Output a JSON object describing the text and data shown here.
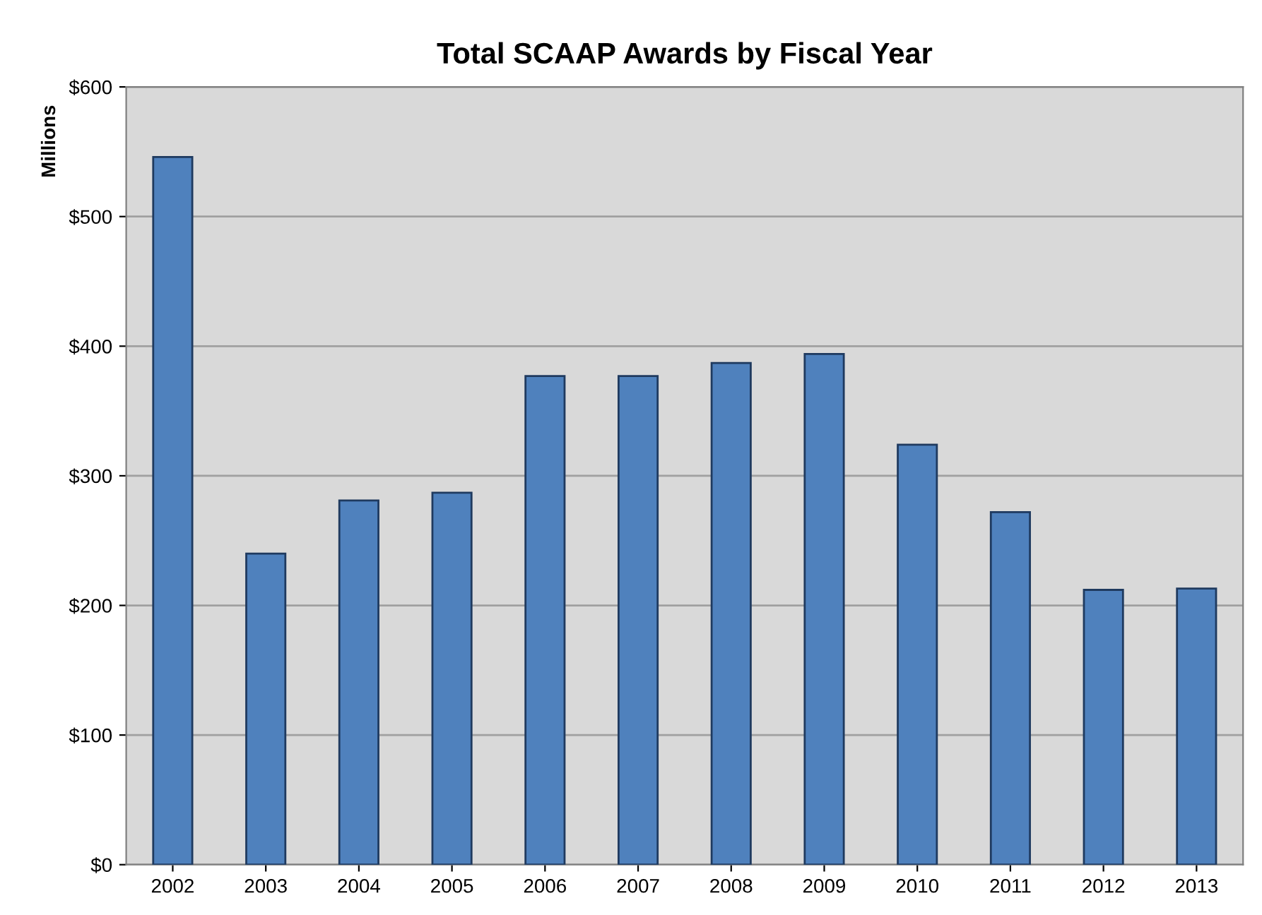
{
  "chart_data": {
    "type": "bar",
    "title": "Total SCAAP Awards by Fiscal Year",
    "ylabel": "Millions",
    "categories": [
      "2002",
      "2003",
      "2004",
      "2005",
      "2006",
      "2007",
      "2008",
      "2009",
      "2010",
      "2011",
      "2012",
      "2013"
    ],
    "values": [
      546,
      240,
      281,
      287,
      377,
      377,
      387,
      394,
      324,
      272,
      212,
      213
    ],
    "color": "#4f81bd",
    "ylim": [
      0,
      600
    ],
    "yticks": [
      {
        "value": 0,
        "label": "$0"
      },
      {
        "value": 100,
        "label": "$100"
      },
      {
        "value": 200,
        "label": "$200"
      },
      {
        "value": 300,
        "label": "$300"
      },
      {
        "value": 400,
        "label": "$400"
      },
      {
        "value": 500,
        "label": "$500"
      },
      {
        "value": 600,
        "label": "$600"
      }
    ],
    "grid": "y",
    "legend": false
  }
}
